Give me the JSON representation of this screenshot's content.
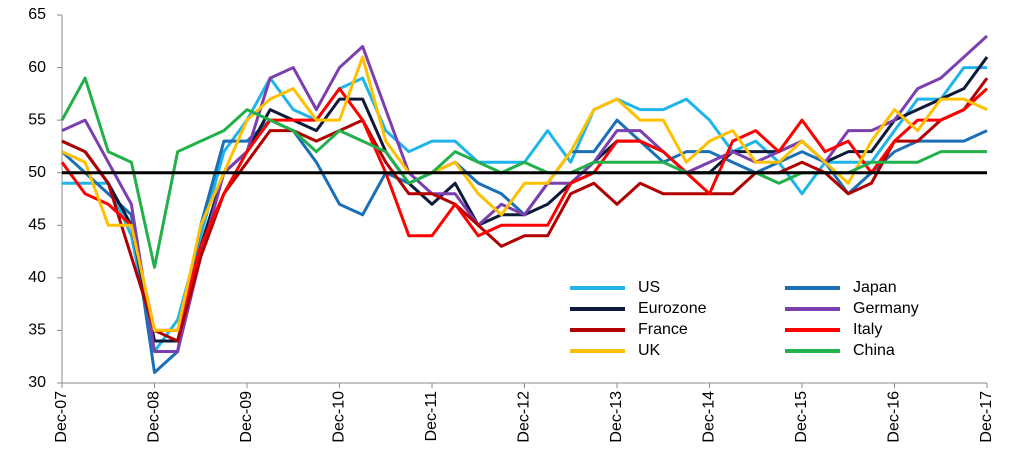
{
  "chart_data": {
    "type": "line",
    "categories": [
      "Dec-07",
      null,
      null,
      null,
      "Dec-08",
      null,
      null,
      null,
      "Dec-09",
      null,
      null,
      null,
      "Dec-10",
      null,
      null,
      null,
      "Dec-11",
      null,
      null,
      null,
      "Dec-12",
      null,
      null,
      null,
      "Dec-13",
      null,
      null,
      null,
      "Dec-14",
      null,
      null,
      null,
      "Dec-15",
      null,
      null,
      null,
      "Dec-16",
      null,
      null,
      null,
      "Dec-17"
    ],
    "series": [
      {
        "name": "US",
        "color": "#1fb5ea",
        "values": [
          49,
          49,
          49,
          44,
          33,
          36,
          44,
          52,
          55,
          59,
          56,
          55,
          58,
          59,
          54,
          52,
          53,
          53,
          51,
          51,
          51,
          54,
          51,
          56,
          57,
          56,
          56,
          57,
          55,
          52,
          53,
          51,
          48,
          51,
          51,
          51,
          54,
          57,
          57,
          60,
          60
        ]
      },
      {
        "name": "Japan",
        "color": "#1a6fb5",
        "values": [
          52,
          50,
          48,
          46,
          31,
          33,
          45,
          53,
          53,
          55,
          54,
          51,
          47,
          46,
          50,
          49,
          50,
          51,
          49,
          48,
          46,
          49,
          52,
          52,
          55,
          53,
          51,
          52,
          52,
          51,
          50,
          51,
          52,
          51,
          48,
          50,
          52,
          53,
          53,
          53,
          54
        ]
      },
      {
        "name": "Eurozone",
        "color": "#0d1a3a",
        "values": [
          53,
          52,
          49,
          45,
          34,
          34,
          43,
          50,
          52,
          56,
          55,
          54,
          57,
          57,
          52,
          49,
          47,
          49,
          45,
          46,
          46,
          47,
          49,
          51,
          53,
          53,
          52,
          50,
          50,
          52,
          52,
          52,
          53,
          51,
          52,
          52,
          55,
          56,
          57,
          58,
          61
        ]
      },
      {
        "name": "Germany",
        "color": "#7b3fb0",
        "values": [
          54,
          55,
          51,
          47,
          33,
          33,
          42,
          50,
          52,
          59,
          60,
          56,
          60,
          62,
          56,
          50,
          48,
          48,
          45,
          47,
          46,
          49,
          49,
          51,
          54,
          54,
          52,
          50,
          51,
          52,
          51,
          52,
          53,
          51,
          54,
          54,
          55,
          58,
          59,
          61,
          63
        ]
      },
      {
        "name": "France",
        "color": "#b00000",
        "values": [
          53,
          52,
          49,
          42,
          35,
          34,
          42,
          48,
          51,
          54,
          54,
          53,
          54,
          55,
          51,
          48,
          48,
          47,
          45,
          43,
          44,
          44,
          48,
          49,
          47,
          49,
          48,
          48,
          48,
          48,
          50,
          50,
          51,
          50,
          48,
          49,
          53,
          53,
          55,
          56,
          59
        ]
      },
      {
        "name": "Italy",
        "color": "#ff0000",
        "values": [
          51,
          48,
          47,
          45,
          35,
          35,
          43,
          48,
          52,
          55,
          55,
          55,
          58,
          55,
          50,
          44,
          44,
          47,
          44,
          45,
          45,
          45,
          49,
          50,
          53,
          53,
          52,
          50,
          48,
          53,
          54,
          52,
          55,
          52,
          53,
          50,
          53,
          55,
          55,
          56,
          58
        ]
      },
      {
        "name": "UK",
        "color": "#ffc000",
        "values": [
          52,
          51,
          45,
          45,
          35,
          35,
          45,
          50,
          55,
          57,
          58,
          55,
          55,
          61,
          53,
          50,
          50,
          51,
          48,
          46,
          49,
          49,
          52,
          56,
          57,
          55,
          55,
          51,
          53,
          54,
          51,
          51,
          53,
          51,
          49,
          53,
          56,
          54,
          57,
          57,
          56
        ]
      },
      {
        "name": "China",
        "color": "#22b04a",
        "values": [
          55,
          59,
          52,
          51,
          41,
          52,
          53,
          54,
          56,
          55,
          54,
          52,
          54,
          53,
          52,
          49,
          50,
          52,
          51,
          50,
          51,
          50,
          50,
          51,
          51,
          51,
          51,
          50,
          50,
          50,
          50,
          49,
          50,
          50,
          50,
          51,
          51,
          51,
          52,
          52,
          52
        ]
      }
    ],
    "ylim": [
      30,
      65
    ],
    "yticks": [
      30,
      35,
      40,
      45,
      50,
      55,
      60,
      65
    ],
    "reference_line": 50,
    "grid": false
  }
}
